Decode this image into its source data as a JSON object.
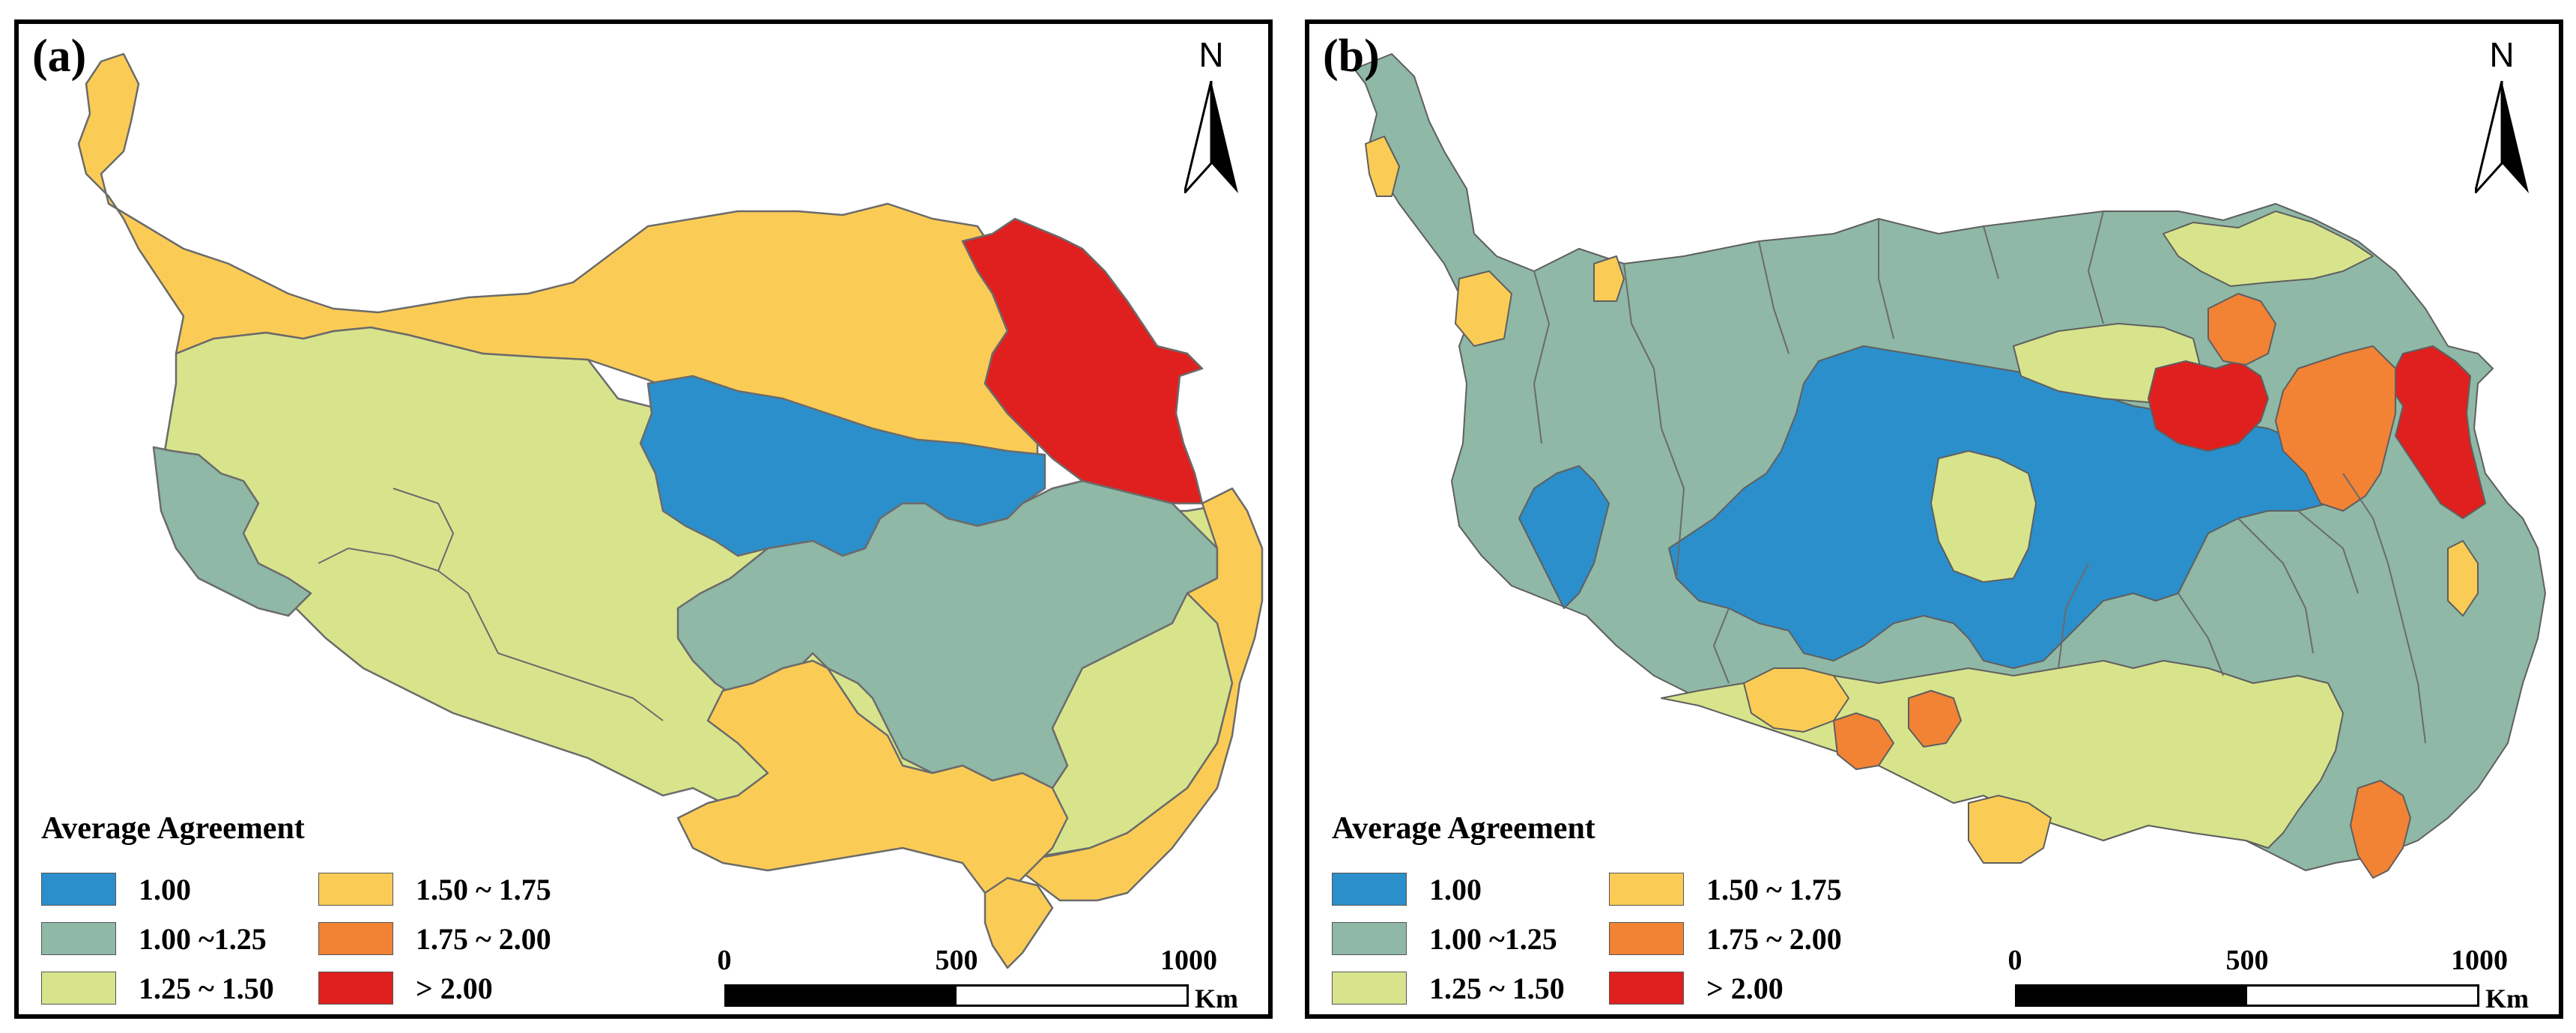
{
  "colors": {
    "c100": "#2b8fcc",
    "c100_125": "#8fb8a6",
    "c125_150": "#d8e48c",
    "c150_175": "#fbcc55",
    "c175_200": "#f28234",
    "c200": "#e0201e"
  },
  "panels": [
    {
      "label": "(a)",
      "north": "N",
      "legend": {
        "title": "Average Agreement",
        "items": [
          {
            "label": "1.00",
            "color": "#2b8fcc"
          },
          {
            "label": "1.00 ~1.25",
            "color": "#8fb8a6"
          },
          {
            "label": "1.25 ~ 1.50",
            "color": "#d8e48c"
          },
          {
            "label": "1.50 ~ 1.75",
            "color": "#fbcc55"
          },
          {
            "label": "1.75 ~ 2.00",
            "color": "#f28234"
          },
          {
            "label": "> 2.00",
            "color": "#e0201e"
          }
        ]
      },
      "scale": {
        "ticks": [
          "0",
          "500",
          "1000"
        ],
        "unit": "Km"
      }
    },
    {
      "label": "(b)",
      "north": "N",
      "legend": {
        "title": "Average Agreement",
        "items": [
          {
            "label": "1.00",
            "color": "#2b8fcc"
          },
          {
            "label": "1.00 ~1.25",
            "color": "#8fb8a6"
          },
          {
            "label": "1.25 ~ 1.50",
            "color": "#d8e48c"
          },
          {
            "label": "1.50 ~ 1.75",
            "color": "#fbcc55"
          },
          {
            "label": "1.75 ~ 2.00",
            "color": "#f28234"
          },
          {
            "label": "> 2.00",
            "color": "#e0201e"
          }
        ]
      },
      "scale": {
        "ticks": [
          "0",
          "500",
          "1000"
        ],
        "unit": "Km"
      }
    }
  ]
}
